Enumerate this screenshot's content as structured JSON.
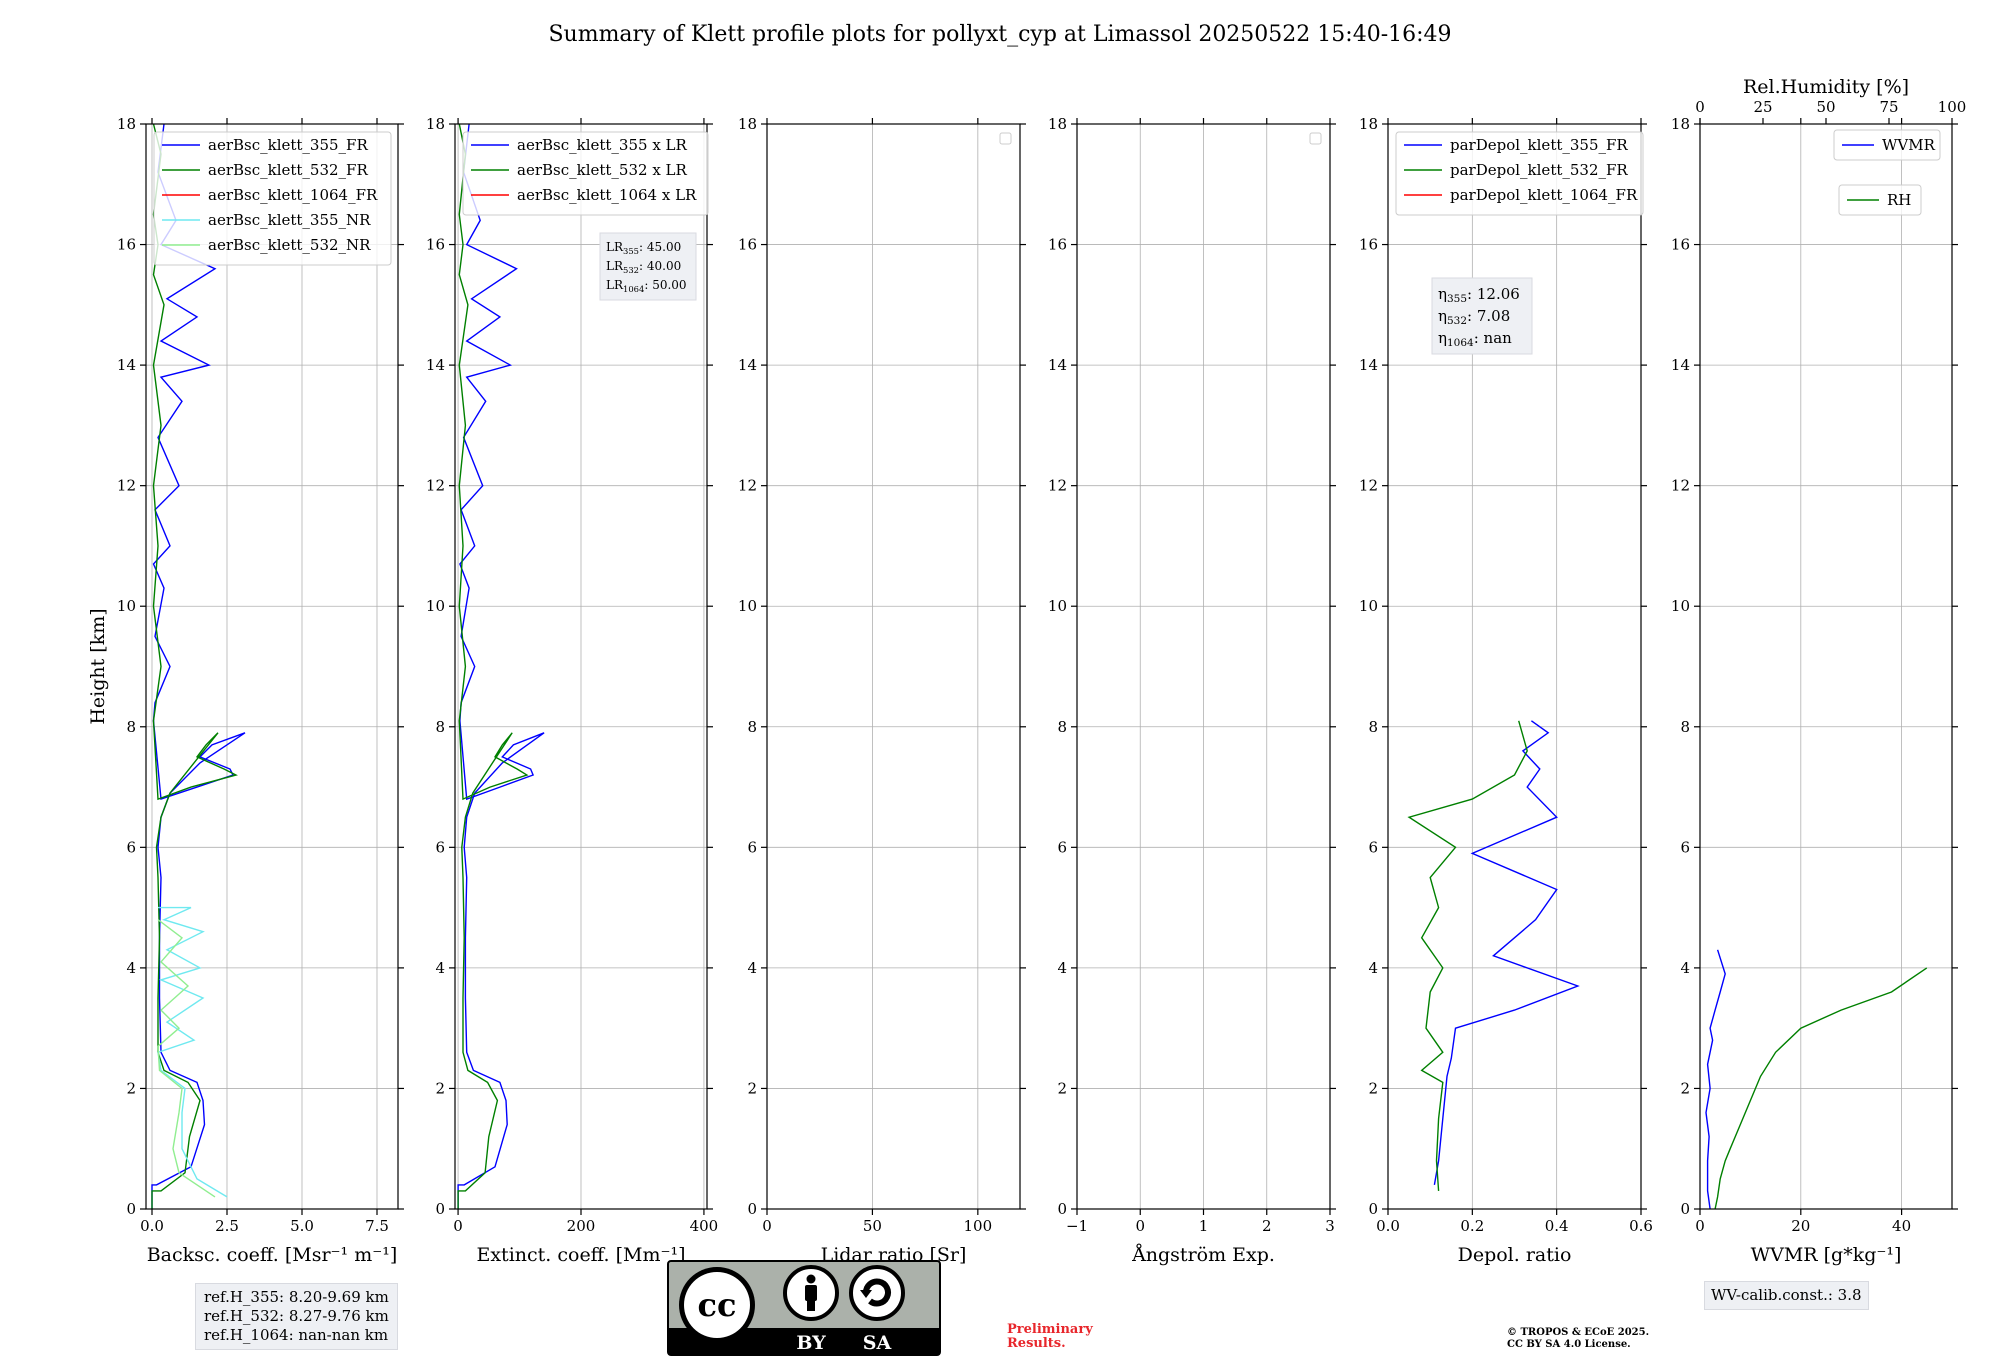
{
  "title": "Summary of Klett profile plots for pollyxt_cyp at Limassol 20250522 15:40-16:49",
  "colors": {
    "blue": "#0000ff",
    "green": "#008000",
    "red": "#ff0000",
    "cyan": "#6fe9f0",
    "lightgreen": "#90ee90",
    "lavender": "#b0b8f0"
  },
  "chart_data": [
    {
      "type": "line",
      "xlabel": "Backsc. coeff. [Msr⁻¹ m⁻¹]",
      "ylabel": "Height [km]",
      "xlim": [
        -0.2,
        8.2
      ],
      "ylim": [
        0,
        18
      ],
      "xticks": [
        0,
        2.5,
        5,
        7.5
      ],
      "xticklabels": [
        "0.0",
        "2.5",
        "5.0",
        "7.5"
      ],
      "legend": "top",
      "series": [
        {
          "name": "aerBsc_klett_355_FR",
          "color": "#0000ff",
          "x": [
            0,
            0,
            0.15,
            1.3,
            1.75,
            1.7,
            1.5,
            0.6,
            0.3,
            0.25,
            0.25,
            0.3,
            0.2,
            0.3,
            0.6,
            1.6,
            3.1,
            2.0,
            1.6,
            2.6,
            2.7,
            1.5,
            0.3,
            0.05,
            0.1,
            0.6,
            0.1,
            0.4,
            0.05,
            0.6,
            0.1,
            0.9,
            0.2,
            1.0,
            0.3,
            1.9,
            0.3,
            1.5,
            0.5,
            2.1,
            0.3,
            0.8,
            0.2,
            0.4
          ],
          "y": [
            0,
            0.4,
            0.4,
            0.7,
            1.4,
            1.8,
            2.1,
            2.3,
            2.6,
            3.5,
            4.5,
            5.5,
            6.0,
            6.5,
            6.9,
            7.4,
            7.9,
            7.7,
            7.5,
            7.3,
            7.2,
            7.0,
            6.8,
            8.1,
            8.4,
            9.0,
            9.5,
            10.3,
            10.7,
            11.0,
            11.6,
            12.0,
            12.8,
            13.4,
            13.8,
            14.0,
            14.4,
            14.8,
            15.1,
            15.6,
            16.0,
            16.4,
            17.2,
            18.0
          ]
        },
        {
          "name": "aerBsc_klett_532_FR",
          "color": "#008000",
          "x": [
            0,
            0,
            0.3,
            1.1,
            1.25,
            1.6,
            1.2,
            0.4,
            0.2,
            0.2,
            0.25,
            0.2,
            0.15,
            0.3,
            0.6,
            1.4,
            2.2,
            1.8,
            1.5,
            2.4,
            2.8,
            1.3,
            0.2,
            0.05,
            0.3,
            0.05,
            0.2,
            0.05,
            0.3,
            0.05,
            0.4,
            0.05,
            0.2,
            0.05,
            0.3,
            0.05
          ],
          "y": [
            0,
            0.3,
            0.3,
            0.6,
            1.2,
            1.8,
            2.1,
            2.3,
            2.6,
            3.5,
            4.5,
            5.5,
            6.0,
            6.5,
            6.9,
            7.4,
            7.9,
            7.7,
            7.5,
            7.3,
            7.2,
            7.0,
            6.8,
            8.1,
            9.0,
            10.0,
            11.0,
            12.0,
            13.0,
            14.0,
            15.0,
            15.5,
            16.0,
            16.5,
            17.5,
            18.0
          ]
        },
        {
          "name": "aerBsc_klett_1064_FR",
          "color": "#ff0000",
          "x": [],
          "y": []
        },
        {
          "name": "aerBsc_klett_355_NR",
          "color": "#6fe9f0",
          "x": [
            2.5,
            1.5,
            1.0,
            1.0,
            1.1,
            0.3,
            0.2,
            1.4,
            0.5,
            1.7,
            0.3,
            1.6,
            0.5,
            1.7,
            0.4,
            1.3,
            0.2
          ],
          "y": [
            0.2,
            0.5,
            1.0,
            1.6,
            2.0,
            2.3,
            2.6,
            2.8,
            3.1,
            3.5,
            3.8,
            4.0,
            4.3,
            4.6,
            4.8,
            5.0,
            5.0
          ]
        },
        {
          "name": "aerBsc_klett_532_NR",
          "color": "#90ee90",
          "x": [
            2.1,
            0.9,
            0.7,
            0.9,
            1.0,
            0.25,
            0.2,
            0.9,
            0.3,
            1.2,
            0.3,
            1.0,
            0.2
          ],
          "y": [
            0.2,
            0.6,
            1.0,
            1.6,
            2.0,
            2.3,
            2.7,
            3.0,
            3.3,
            3.7,
            4.1,
            4.5,
            4.8
          ]
        }
      ]
    },
    {
      "type": "line",
      "xlabel": "Extinct. coeff. [Mm⁻¹]",
      "xlim": [
        -5,
        405
      ],
      "ylim": [
        0,
        18
      ],
      "xticks": [
        0,
        200,
        400
      ],
      "xticklabels": [
        "0",
        "200",
        "400"
      ],
      "legend": "top",
      "annotation": {
        "lines": [
          {
            "base": "LR",
            "sub": "355",
            "value": ": 45.00"
          },
          {
            "base": "LR",
            "sub": "532",
            "value": ": 40.00"
          },
          {
            "base": "LR",
            "sub": "1064",
            "value": ": 50.00"
          }
        ]
      },
      "series": [
        {
          "name": "aerBsc_klett_355 x LR",
          "color": "#0000ff",
          "x": [
            0,
            0,
            10,
            60,
            80,
            78,
            68,
            25,
            14,
            12,
            12,
            14,
            10,
            14,
            27,
            72,
            140,
            90,
            72,
            118,
            122,
            68,
            14,
            3,
            5,
            27,
            5,
            18,
            3,
            27,
            5,
            40,
            9,
            45,
            14,
            85,
            14,
            68,
            22,
            95,
            14,
            36,
            9,
            18
          ],
          "y": [
            0,
            0.4,
            0.4,
            0.7,
            1.4,
            1.8,
            2.1,
            2.3,
            2.6,
            3.5,
            4.5,
            5.5,
            6.0,
            6.5,
            6.9,
            7.4,
            7.9,
            7.7,
            7.5,
            7.3,
            7.2,
            7.0,
            6.8,
            8.1,
            8.4,
            9.0,
            9.5,
            10.3,
            10.7,
            11.0,
            11.6,
            12.0,
            12.8,
            13.4,
            13.8,
            14.0,
            14.4,
            14.8,
            15.1,
            15.6,
            16.0,
            16.4,
            17.2,
            18.0
          ]
        },
        {
          "name": "aerBsc_klett_532 x LR",
          "color": "#008000",
          "x": [
            0,
            0,
            12,
            44,
            50,
            64,
            48,
            16,
            8,
            8,
            10,
            8,
            6,
            12,
            24,
            56,
            88,
            72,
            60,
            96,
            112,
            52,
            8,
            2,
            12,
            2,
            8,
            2,
            12,
            2,
            16,
            2,
            8,
            2,
            12,
            2
          ],
          "y": [
            0,
            0.3,
            0.3,
            0.6,
            1.2,
            1.8,
            2.1,
            2.3,
            2.6,
            3.5,
            4.5,
            5.5,
            6.0,
            6.5,
            6.9,
            7.4,
            7.9,
            7.7,
            7.5,
            7.3,
            7.2,
            7.0,
            6.8,
            8.1,
            9.0,
            10.0,
            11.0,
            12.0,
            13.0,
            14.0,
            15.0,
            15.5,
            16.0,
            16.5,
            17.5,
            18.0
          ]
        },
        {
          "name": "aerBsc_klett_1064 x LR",
          "color": "#ff0000",
          "x": [],
          "y": []
        }
      ]
    },
    {
      "type": "line",
      "xlabel": "Lidar ratio [Sr]",
      "xlim": [
        0,
        120
      ],
      "ylim": [
        0,
        18
      ],
      "xticks": [
        0,
        50,
        100
      ],
      "xticklabels": [
        "0",
        "50",
        "100"
      ],
      "legend": "top-right",
      "series": []
    },
    {
      "type": "line",
      "xlabel": "Ångström Exp.",
      "xlim": [
        -1,
        3
      ],
      "ylim": [
        0,
        18
      ],
      "xticks": [
        -1,
        0,
        1,
        2,
        3
      ],
      "xticklabels": [
        "−1",
        "0",
        "1",
        "2",
        "3"
      ],
      "legend": "top-right",
      "series": []
    },
    {
      "type": "line",
      "xlabel": "Depol. ratio",
      "xlim": [
        0,
        0.6
      ],
      "ylim": [
        0,
        18
      ],
      "xticks": [
        0,
        0.2,
        0.4,
        0.6
      ],
      "xticklabels": [
        "0.0",
        "0.2",
        "0.4",
        "0.6"
      ],
      "legend": "top-left",
      "annotation": {
        "lines": [
          {
            "base": "η",
            "sub": "355",
            "value": ": 12.06"
          },
          {
            "base": "η",
            "sub": "532",
            "value": ": 7.08"
          },
          {
            "base": "η",
            "sub": "1064",
            "value": ": nan"
          }
        ]
      },
      "series": [
        {
          "name": "parDepol_klett_355_FR",
          "color": "#0000ff",
          "x": [
            0.11,
            0.12,
            0.13,
            0.14,
            0.15,
            0.16,
            0.3,
            0.45,
            0.25,
            0.35,
            0.4,
            0.2,
            0.4,
            0.33,
            0.36,
            0.32,
            0.38,
            0.34
          ],
          "y": [
            0.4,
            0.8,
            1.5,
            2.2,
            2.5,
            3.0,
            3.3,
            3.7,
            4.2,
            4.8,
            5.3,
            5.9,
            6.5,
            7.0,
            7.3,
            7.6,
            7.9,
            8.1
          ]
        },
        {
          "name": "parDepol_klett_532_FR",
          "color": "#008000",
          "x": [
            0.12,
            0.115,
            0.12,
            0.13,
            0.08,
            0.13,
            0.09,
            0.1,
            0.13,
            0.08,
            0.12,
            0.1,
            0.16,
            0.05,
            0.2,
            0.3,
            0.33,
            0.31
          ],
          "y": [
            0.3,
            0.8,
            1.5,
            2.1,
            2.3,
            2.6,
            3.0,
            3.6,
            4.0,
            4.5,
            5.0,
            5.5,
            6.0,
            6.5,
            6.8,
            7.2,
            7.6,
            8.1
          ]
        },
        {
          "name": "parDepol_klett_1064_FR",
          "color": "#ff0000",
          "x": [],
          "y": []
        }
      ]
    },
    {
      "type": "line",
      "xlabel": "WVMR [g*kg⁻¹]",
      "xlim": [
        0,
        50
      ],
      "ylim": [
        0,
        18
      ],
      "xticks": [
        0,
        20,
        40
      ],
      "xticklabels": [
        "0",
        "20",
        "40"
      ],
      "top_axis": {
        "label": "Rel.Humidity [%]",
        "range": [
          0,
          100
        ],
        "ticks": [
          0,
          25,
          50,
          75,
          100
        ],
        "ticklabels": [
          "0",
          "25",
          "50",
          "75",
          "100"
        ]
      },
      "legend": "top-right",
      "series": [
        {
          "name": "WVMR",
          "color": "#0000ff",
          "x": [
            2.0,
            1.5,
            1.5,
            1.8,
            1.2,
            2.0,
            1.5,
            2.5,
            2.0,
            3.0,
            4.0,
            5.0,
            3.5
          ],
          "y": [
            0,
            0.3,
            0.8,
            1.2,
            1.6,
            2.0,
            2.4,
            2.8,
            3.0,
            3.3,
            3.6,
            3.9,
            4.3
          ]
        },
        {
          "name": "RH",
          "color": "#008000",
          "x": [
            3.0,
            3.5,
            4.0,
            5.0,
            6.0,
            8.0,
            10.0,
            12.0,
            15.0,
            20.0,
            28.0,
            38.0,
            45.0
          ],
          "y": [
            0,
            0.2,
            0.5,
            0.8,
            1.0,
            1.4,
            1.8,
            2.2,
            2.6,
            3.0,
            3.3,
            3.6,
            4.0
          ]
        }
      ]
    }
  ],
  "info": {
    "ref_h": [
      "ref.H_355: 8.20-9.69 km",
      "ref.H_532: 8.27-9.76 km",
      "ref.H_1064: nan-nan km"
    ],
    "wv_calib": "WV-calib.const.: 3.8",
    "preliminary": [
      "Preliminary",
      "Results."
    ],
    "copyright": [
      "© TROPOS & ECoE 2025.",
      "CC BY SA 4.0 License."
    ],
    "license_badge": {
      "icon": "cc-by-sa-icon",
      "text": [
        "BY",
        "SA"
      ]
    }
  }
}
